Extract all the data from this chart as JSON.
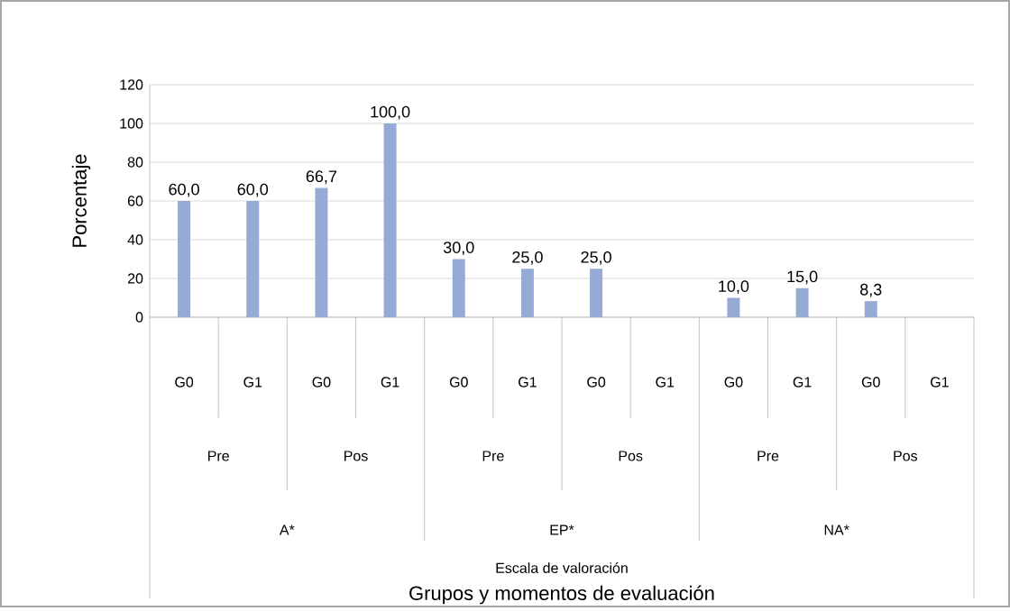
{
  "chart_data": {
    "type": "bar",
    "ylabel": "Porcentaje",
    "categories": [
      "G0",
      "G1",
      "G0",
      "G1",
      "G0",
      "G1",
      "G0",
      "G1",
      "G0",
      "G1",
      "G0",
      "G1"
    ],
    "values": [
      60,
      60,
      66.7,
      100,
      30,
      25,
      25,
      null,
      10,
      15,
      8.3,
      null
    ],
    "value_labels": [
      "60,0",
      "60,0",
      "66,7",
      "100,0",
      "30,0",
      "25,0",
      "25,0",
      null,
      "10,0",
      "15,0",
      "8,3",
      null
    ],
    "color": "#95abd6",
    "ylim": [
      0,
      120
    ],
    "yticks": [
      0,
      20,
      40,
      60,
      80,
      100,
      120
    ],
    "grid": "y",
    "annotations": [
      "Pre",
      "Pos",
      "Pre",
      "Pos",
      "Pre",
      "Pos",
      "A*",
      "EP*",
      "NA*",
      "Escala de valoración",
      "Grupos y momentos de evaluación"
    ]
  }
}
